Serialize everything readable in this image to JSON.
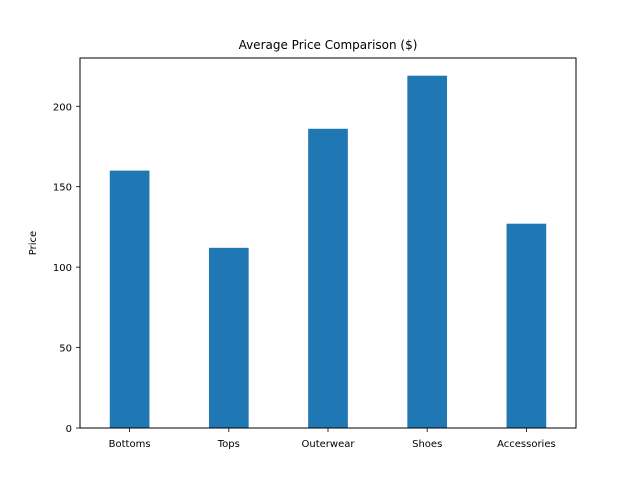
{
  "chart_data": {
    "type": "bar",
    "title": "Average Price Comparison ($)",
    "xlabel": "",
    "ylabel": "Price",
    "categories": [
      "Bottoms",
      "Tops",
      "Outerwear",
      "Shoes",
      "Accessories"
    ],
    "values": [
      160,
      112,
      186,
      219,
      127
    ],
    "ylim": [
      0,
      230
    ],
    "yticks": [
      0,
      50,
      100,
      150,
      200
    ],
    "grid": false,
    "legend": "none",
    "bar_color": "#1f77b4"
  }
}
